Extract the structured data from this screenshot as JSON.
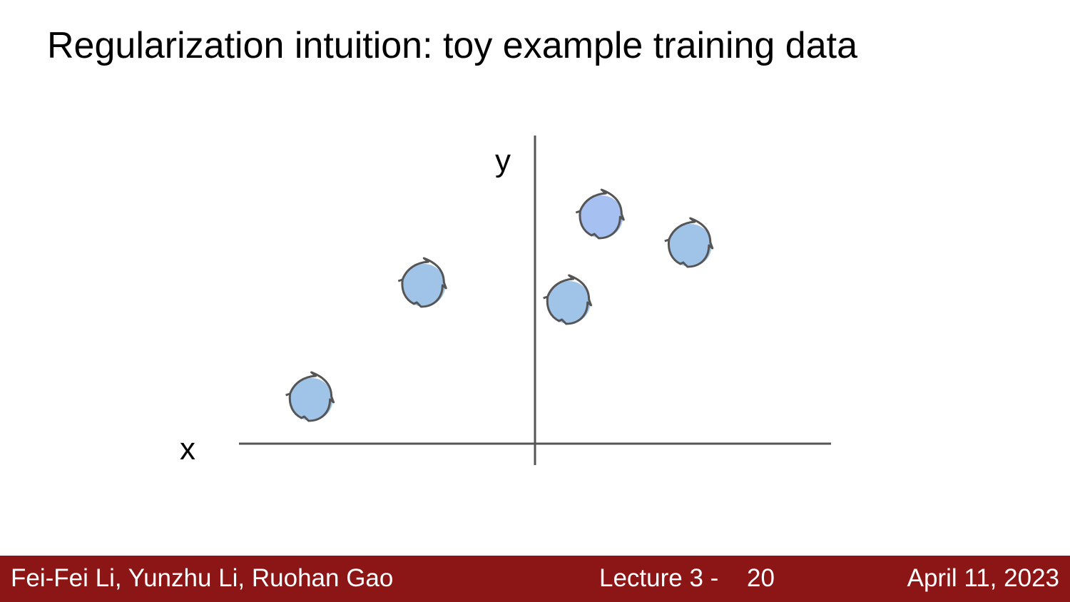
{
  "slide": {
    "title": "Regularization intuition: toy example training data"
  },
  "chart_data": {
    "type": "scatter",
    "title": "",
    "xlabel": "x",
    "ylabel": "y",
    "xlim": [
      -5,
      5
    ],
    "ylim": [
      0,
      5.4
    ],
    "grid": false,
    "series": [
      {
        "points": [
          {
            "x": -3.8,
            "y": 0.8,
            "color": "#a0c4e8"
          },
          {
            "x": -1.9,
            "y": 2.8,
            "color": "#a0c4e8"
          },
          {
            "x": 0.55,
            "y": 2.5,
            "color": "#a0c4e8"
          },
          {
            "x": 1.1,
            "y": 4.0,
            "color": "#a7c0f2"
          },
          {
            "x": 2.6,
            "y": 3.5,
            "color": "#a0c4e8"
          }
        ]
      }
    ]
  },
  "footer": {
    "authors": "Fei-Fei Li, Yunzhu Li, Ruohan Gao",
    "lecture": "Lecture 3 -",
    "page": "20",
    "date": "April 11, 2023"
  }
}
